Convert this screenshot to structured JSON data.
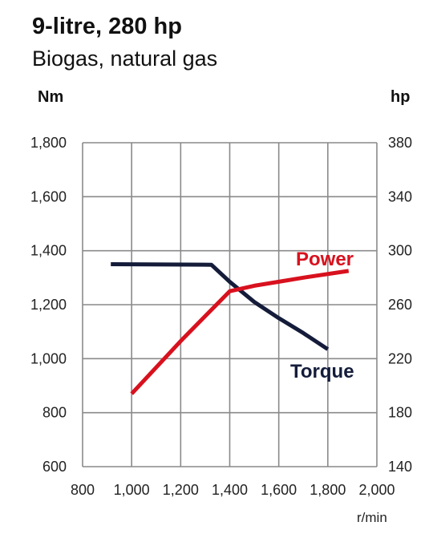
{
  "header": {
    "title": "9-litre, 280 hp",
    "subtitle": "Biogas, natural gas"
  },
  "chart_data": {
    "type": "line",
    "title": "9-litre, 280 hp",
    "subtitle": "Biogas, natural gas",
    "xlabel": "r/min",
    "ylabel_left": "Nm",
    "ylabel_right": "hp",
    "xlim": [
      800,
      2000
    ],
    "ylim_left": [
      600,
      1800
    ],
    "ylim_right": [
      140,
      380
    ],
    "x_ticks": [
      "800",
      "1,000",
      "1,200",
      "1,400",
      "1,600",
      "1,800",
      "2,000"
    ],
    "y_ticks_left": [
      "600",
      "800",
      "1,000",
      "1,200",
      "1,400",
      "1,600",
      "1,800"
    ],
    "y_ticks_right": [
      "140",
      "180",
      "220",
      "260",
      "300",
      "340",
      "380"
    ],
    "grid": true,
    "series": [
      {
        "name": "Torque",
        "axis": "left",
        "color": "#141c3a",
        "points": [
          [
            915,
            1350
          ],
          [
            1325,
            1348
          ],
          [
            1400,
            1285
          ],
          [
            1500,
            1210
          ],
          [
            1600,
            1150
          ],
          [
            1700,
            1095
          ],
          [
            1800,
            1035
          ]
        ]
      },
      {
        "name": "Power",
        "axis": "right",
        "color": "#d8111e",
        "points": [
          [
            1000,
            194
          ],
          [
            1200,
            233
          ],
          [
            1400,
            270
          ],
          [
            1500,
            274
          ],
          [
            1600,
            277
          ],
          [
            1700,
            280
          ],
          [
            1885,
            285
          ]
        ]
      }
    ]
  }
}
